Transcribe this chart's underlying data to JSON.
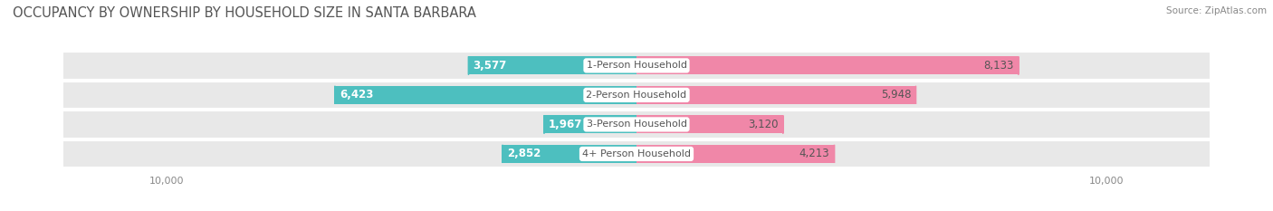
{
  "title": "OCCUPANCY BY OWNERSHIP BY HOUSEHOLD SIZE IN SANTA BARBARA",
  "source": "Source: ZipAtlas.com",
  "categories": [
    "1-Person Household",
    "2-Person Household",
    "3-Person Household",
    "4+ Person Household"
  ],
  "owner_values": [
    3577,
    6423,
    1967,
    2852
  ],
  "renter_values": [
    8133,
    5948,
    3120,
    4213
  ],
  "owner_color": "#4DBFBF",
  "renter_color": "#F087A8",
  "row_bg_color": "#E8E8E8",
  "row_sep_color": "#FFFFFF",
  "axis_max": 10000,
  "title_fontsize": 10.5,
  "label_fontsize": 8.5,
  "value_fontsize": 8.5,
  "tick_fontsize": 8,
  "legend_fontsize": 8.5,
  "source_fontsize": 7.5,
  "title_color": "#555555",
  "value_color_inside": "#FFFFFF",
  "value_color_outside": "#555555",
  "source_color": "#888888",
  "cat_label_color": "#555555",
  "tick_color": "#888888"
}
